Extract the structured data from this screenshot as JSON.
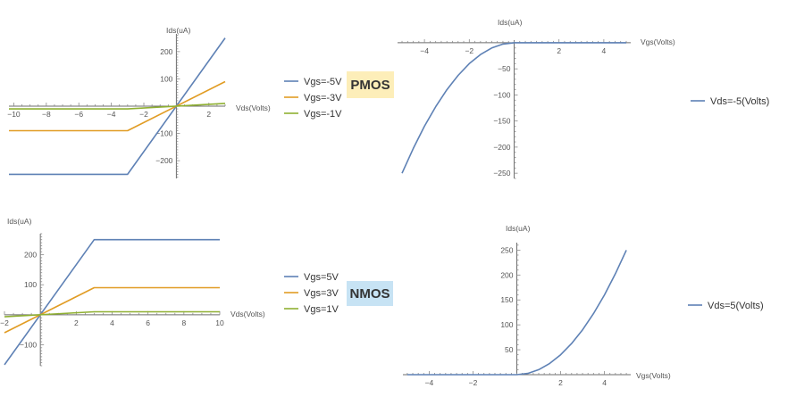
{
  "colors": {
    "series1": "#5e81b5",
    "series2": "#e19c24",
    "series3": "#8fb032"
  },
  "badges": [
    {
      "text": "PMOS",
      "bg": "#fdeeb9"
    },
    {
      "text": "NMOS",
      "bg": "#c7e3f4"
    }
  ],
  "chart_data": [
    {
      "type": "line",
      "xlabel": "Vds(Volts)",
      "ylabel": "Ids(uA)",
      "xlim": [
        -10.3,
        3
      ],
      "ylim": [
        -265,
        265
      ],
      "xticks": [
        -10,
        -8,
        -6,
        -4,
        -2,
        2
      ],
      "yticks": [
        -200,
        -100,
        100,
        200
      ],
      "legend_placement": "right",
      "grid": false,
      "series": [
        {
          "name": "Vgs=-5V",
          "color_key": "series1",
          "x": [
            -10.3,
            -3,
            3
          ],
          "y": [
            -250,
            -250,
            250
          ]
        },
        {
          "name": "Vgs=-3V",
          "color_key": "series2",
          "x": [
            -10.3,
            -3,
            3
          ],
          "y": [
            -90,
            -90,
            90
          ]
        },
        {
          "name": "Vgs=-1V",
          "color_key": "series3",
          "x": [
            -10.3,
            -3,
            3
          ],
          "y": [
            -10,
            -10,
            10
          ]
        }
      ]
    },
    {
      "type": "line",
      "xlabel": "Vgs(Volts)",
      "ylabel": "Ids(uA)",
      "xlim": [
        -5.2,
        5.2
      ],
      "ylim": [
        -260,
        5
      ],
      "xticks": [
        -4,
        -2,
        2,
        4
      ],
      "yticks": [
        -50,
        -100,
        -150,
        -200,
        -250
      ],
      "legend_placement": "right",
      "grid": false,
      "series": [
        {
          "name": "Vds=-5(Volts)",
          "color_key": "series1",
          "x": [
            -5,
            -4.5,
            -4,
            -3.5,
            -3,
            -2.5,
            -2,
            -1.5,
            -1,
            -0.5,
            0,
            1,
            2,
            3,
            4,
            5
          ],
          "y": [
            -250,
            -202.5,
            -160,
            -122.5,
            -90,
            -62.5,
            -40,
            -22.5,
            -10,
            -2.5,
            0,
            0,
            0,
            0,
            0,
            0
          ]
        }
      ]
    },
    {
      "type": "line",
      "xlabel": "Vds(Volts)",
      "ylabel": "Ids(uA)",
      "xlim": [
        -2,
        10
      ],
      "ylim": [
        -170,
        270
      ],
      "xticks": [
        -2,
        2,
        4,
        6,
        8,
        10
      ],
      "yticks": [
        -100,
        100,
        200
      ],
      "legend_placement": "right",
      "grid": false,
      "series": [
        {
          "name": "Vgs=5V",
          "color_key": "series1",
          "x": [
            -2,
            3,
            10
          ],
          "y": [
            -166.7,
            250,
            250
          ]
        },
        {
          "name": "Vgs=3V",
          "color_key": "series2",
          "x": [
            -2,
            3,
            10
          ],
          "y": [
            -60,
            90,
            90
          ]
        },
        {
          "name": "Vgs=1V",
          "color_key": "series3",
          "x": [
            -2,
            3,
            10
          ],
          "y": [
            -6.7,
            10,
            10
          ]
        }
      ]
    },
    {
      "type": "line",
      "xlabel": "Vgs(Volts)",
      "ylabel": "Ids(uA)",
      "xlim": [
        -5.2,
        5.2
      ],
      "ylim": [
        0,
        265
      ],
      "xticks": [
        -4,
        -2,
        2,
        4
      ],
      "yticks": [
        50,
        100,
        150,
        200,
        250
      ],
      "legend_placement": "right",
      "grid": false,
      "series": [
        {
          "name": "Vds=5(Volts)",
          "color_key": "series1",
          "x": [
            -5,
            -4,
            -3,
            -2,
            -1,
            0,
            0.5,
            1,
            1.5,
            2,
            2.5,
            3,
            3.5,
            4,
            4.5,
            5
          ],
          "y": [
            0,
            0,
            0,
            0,
            0,
            0,
            2.5,
            10,
            22.5,
            40,
            62.5,
            90,
            122.5,
            160,
            202.5,
            250
          ]
        }
      ]
    }
  ]
}
